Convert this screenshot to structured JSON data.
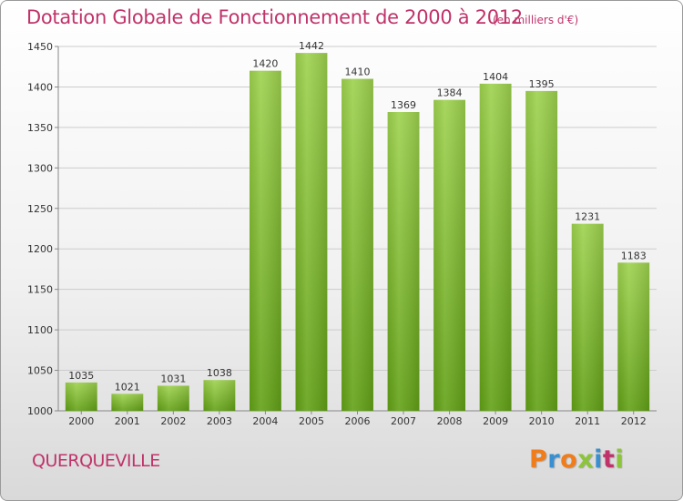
{
  "header": {
    "title": "Dotation Globale de Fonctionnement de 2000 à 2012",
    "unit": "(en milliers d'€)"
  },
  "footer": {
    "commune": "QUERQUEVILLE",
    "logo_letters": [
      "P",
      "r",
      "o",
      "x",
      "i",
      "t",
      "i"
    ],
    "logo_colors": [
      "#f07c1a",
      "#3a8fd0",
      "#f07c1a",
      "#8cc43c",
      "#3a8fd0",
      "#c0336a",
      "#8cc43c"
    ]
  },
  "chart_data": {
    "type": "bar",
    "categories": [
      "2000",
      "2001",
      "2002",
      "2003",
      "2004",
      "2005",
      "2006",
      "2007",
      "2008",
      "2009",
      "2010",
      "2011",
      "2012"
    ],
    "values": [
      1035,
      1021,
      1031,
      1038,
      1420,
      1442,
      1410,
      1369,
      1384,
      1404,
      1395,
      1231,
      1183
    ],
    "title": "Dotation Globale de Fonctionnement de 2000 à 2012",
    "xlabel": "",
    "ylabel": "",
    "ylim": [
      1000,
      1450
    ],
    "yticks": [
      1000,
      1050,
      1100,
      1150,
      1200,
      1250,
      1300,
      1350,
      1400,
      1450
    ],
    "grid": true,
    "bar_color_top": "#9ed24e",
    "bar_color_bottom": "#62a116",
    "grid_color": "#cccccc"
  }
}
